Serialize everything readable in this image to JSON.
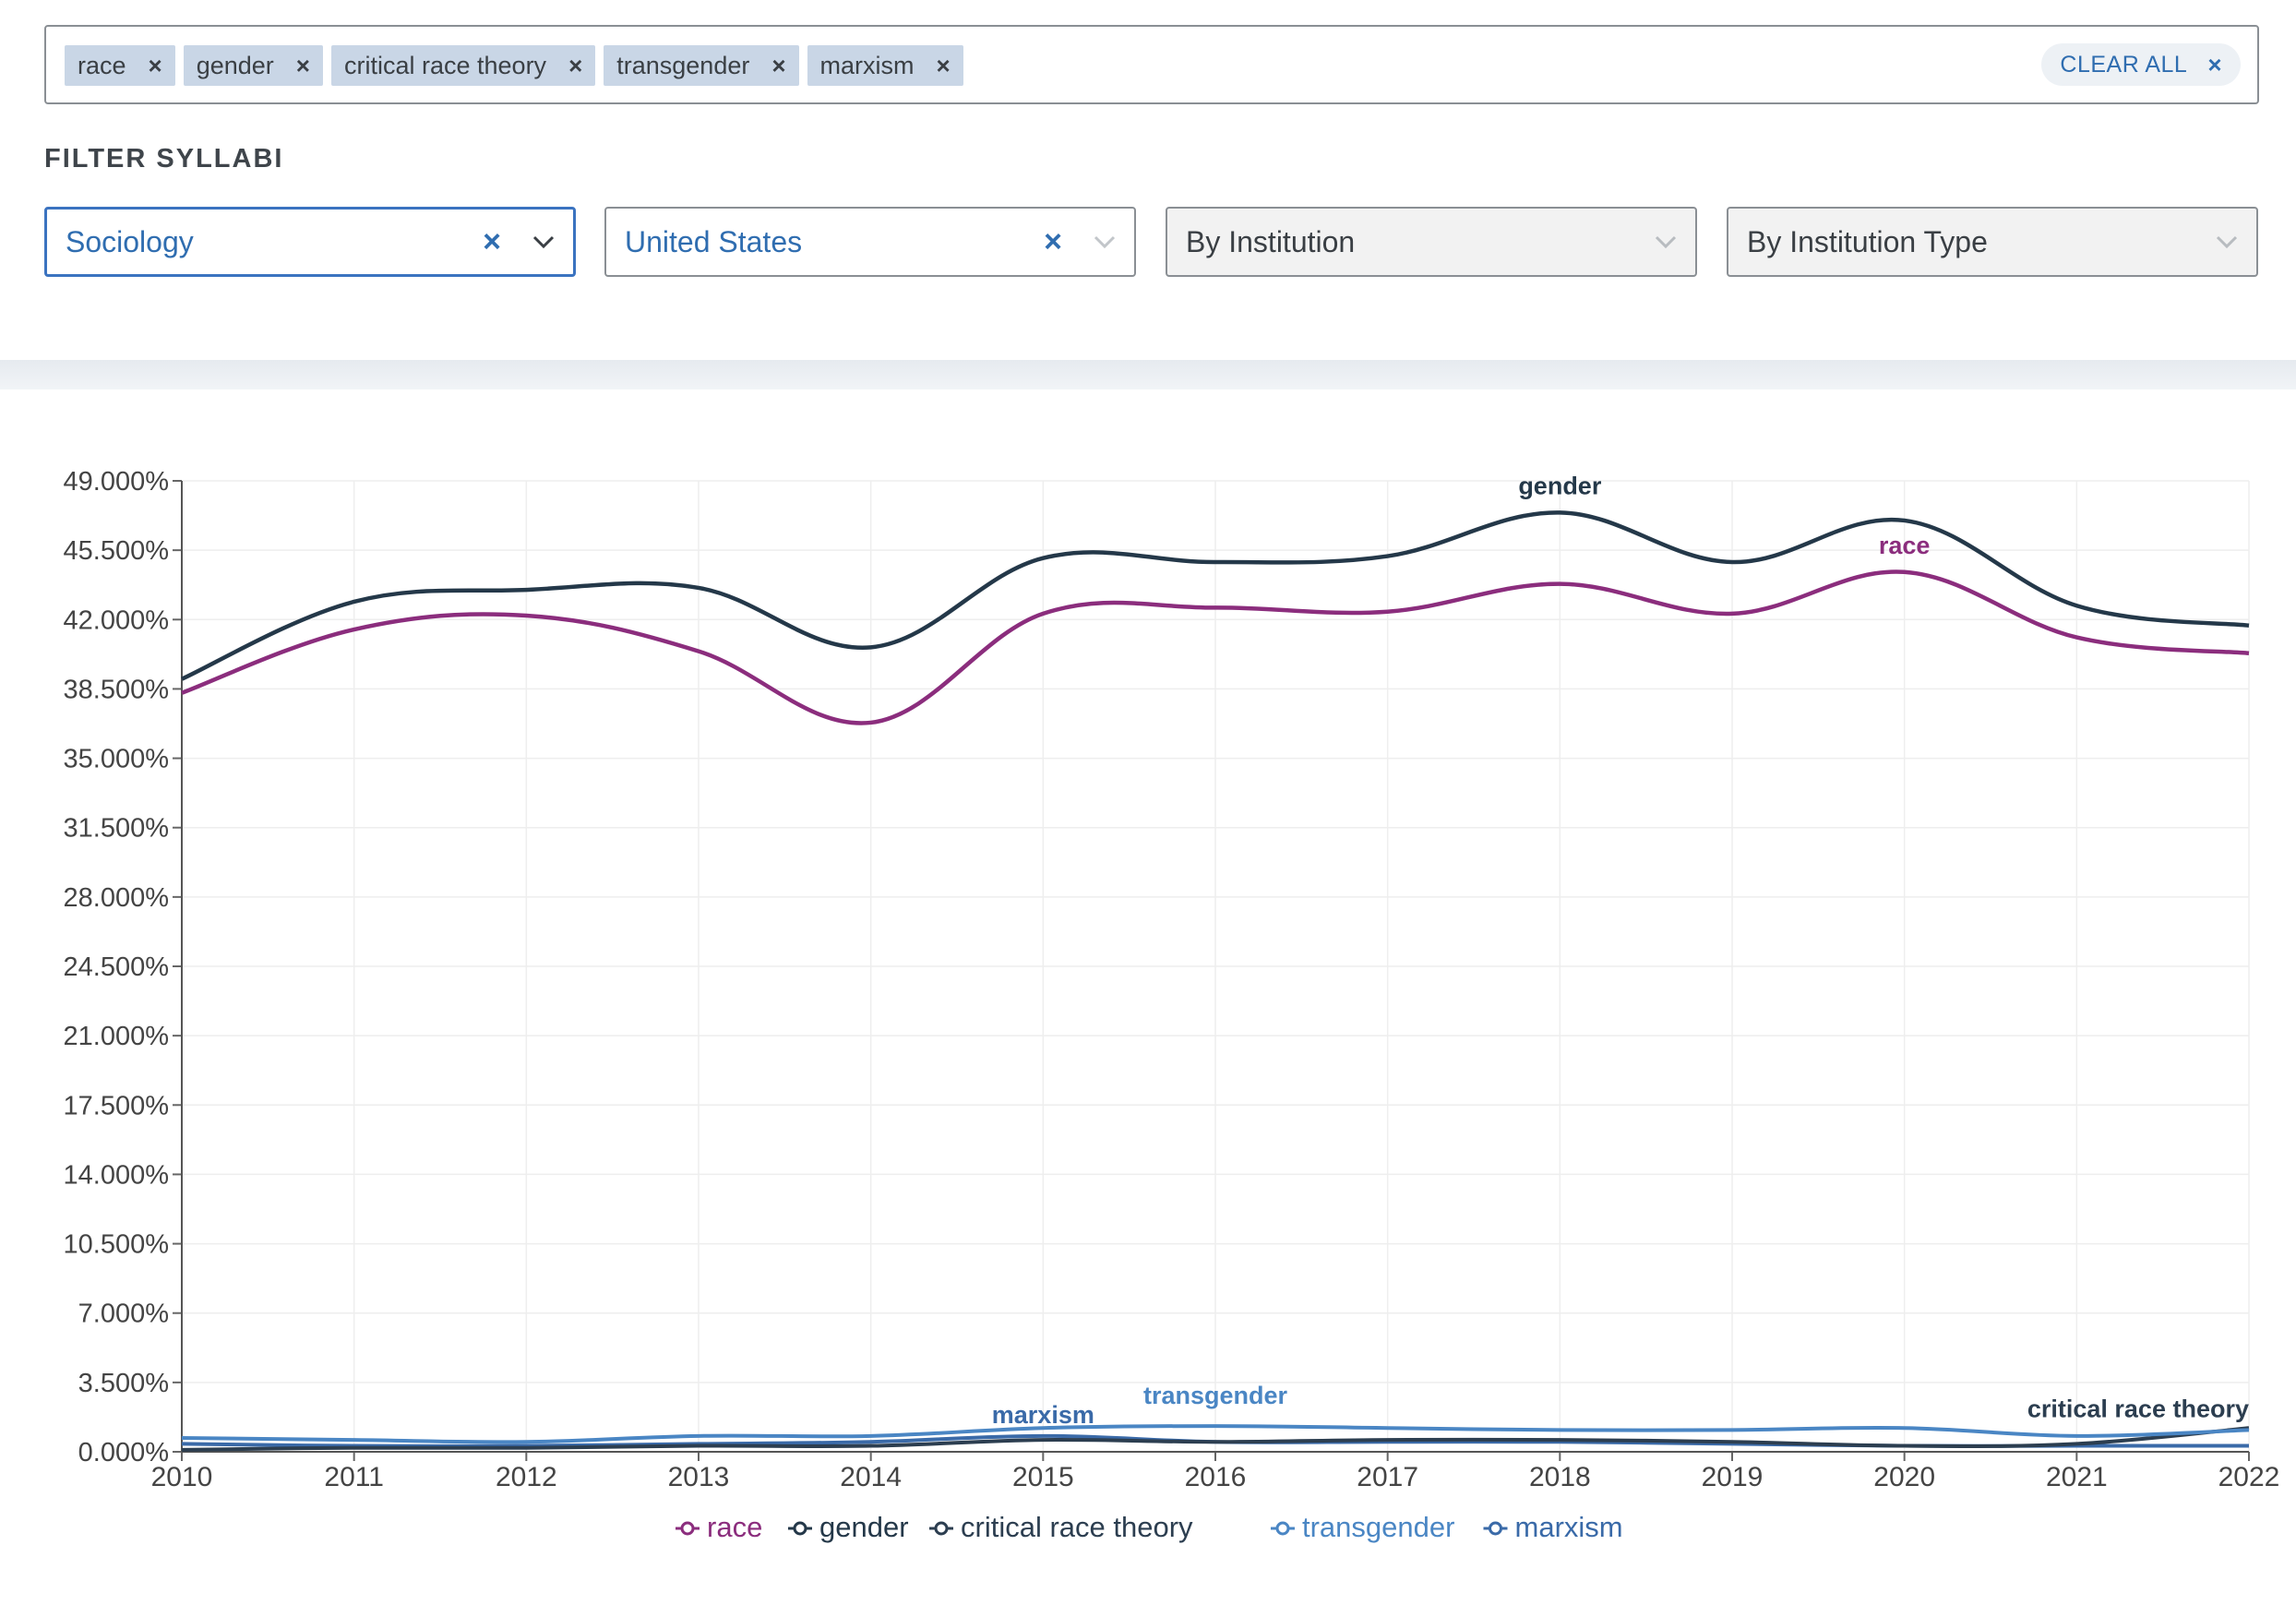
{
  "search": {
    "chips": [
      {
        "label": "race"
      },
      {
        "label": "gender"
      },
      {
        "label": "critical race theory"
      },
      {
        "label": "transgender"
      },
      {
        "label": "marxism"
      }
    ],
    "chip_remove_glyph": "×",
    "clear_all_label": "CLEAR ALL",
    "clear_all_glyph": "×"
  },
  "filters": {
    "title": "FILTER SYLLABI",
    "field": {
      "value": "Sociology",
      "clear_glyph": "×"
    },
    "country": {
      "value": "United States",
      "clear_glyph": "×"
    },
    "institution": {
      "value": "By Institution"
    },
    "institution_type": {
      "value": "By Institution Type"
    }
  },
  "colors": {
    "race": "#8b2d7d",
    "gender": "#243849",
    "critical race theory": "#2c3e50",
    "transgender": "#4a86c4",
    "marxism": "#3a6aa8",
    "accent": "#2f6db0"
  },
  "chart_data": {
    "type": "line",
    "x": [
      2010,
      2011,
      2012,
      2013,
      2014,
      2015,
      2016,
      2017,
      2018,
      2019,
      2020,
      2021,
      2022
    ],
    "ylim": [
      0,
      49
    ],
    "yticks": [
      "0.000%",
      "3.500%",
      "7.000%",
      "10.500%",
      "14.000%",
      "17.500%",
      "21.000%",
      "24.500%",
      "28.000%",
      "31.500%",
      "35.000%",
      "38.500%",
      "42.000%",
      "45.500%",
      "49.000%"
    ],
    "grid": true,
    "legend": "bottom-center",
    "series": [
      {
        "name": "race",
        "values": [
          38.3,
          41.5,
          42.2,
          40.4,
          36.8,
          42.3,
          42.6,
          42.4,
          43.8,
          42.3,
          44.4,
          41.1,
          40.3
        ]
      },
      {
        "name": "gender",
        "values": [
          39.0,
          42.9,
          43.5,
          43.6,
          40.6,
          45.1,
          44.9,
          45.2,
          47.4,
          44.9,
          47.0,
          42.7,
          41.7
        ]
      },
      {
        "name": "critical race theory",
        "values": [
          0.1,
          0.2,
          0.2,
          0.3,
          0.3,
          0.6,
          0.5,
          0.6,
          0.6,
          0.5,
          0.3,
          0.4,
          1.2
        ]
      },
      {
        "name": "transgender",
        "values": [
          0.7,
          0.6,
          0.5,
          0.8,
          0.8,
          1.2,
          1.3,
          1.2,
          1.1,
          1.1,
          1.2,
          0.8,
          1.1
        ]
      },
      {
        "name": "marxism",
        "values": [
          0.4,
          0.3,
          0.3,
          0.4,
          0.5,
          0.8,
          0.5,
          0.5,
          0.5,
          0.4,
          0.3,
          0.3,
          0.3
        ]
      }
    ],
    "annotations": [
      {
        "text": "gender",
        "series": "gender",
        "x": 2018
      },
      {
        "text": "race",
        "series": "race",
        "x": 2020
      },
      {
        "text": "marxism",
        "series": "marxism",
        "x": 2015
      },
      {
        "text": "transgender",
        "series": "transgender",
        "x": 2016
      },
      {
        "text": "critical race theory",
        "series": "critical race theory",
        "x": 2021.4
      }
    ]
  }
}
